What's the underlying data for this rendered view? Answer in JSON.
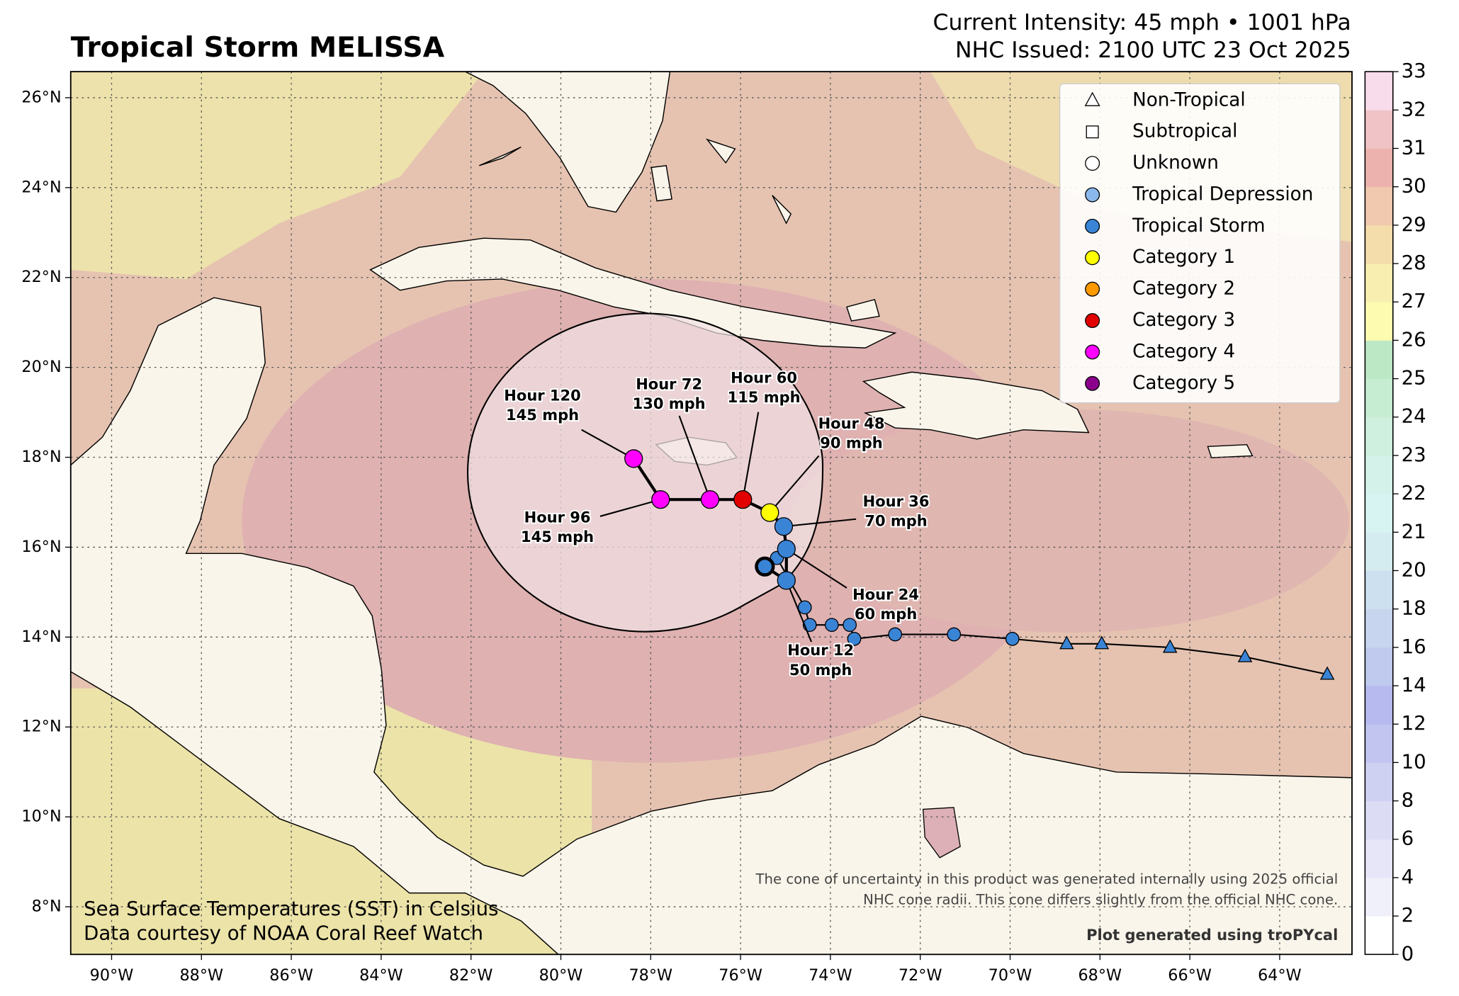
{
  "title": "Tropical Storm MELISSA",
  "intensity": "Current Intensity: 45 mph • 1001 hPa",
  "issued": "NHC Issued: 2100 UTC 23 Oct 2025",
  "map": {
    "xlim": [
      -90.91,
      -62.39
    ],
    "ylim": [
      6.94,
      26.58
    ],
    "xticks": [
      {
        "value": -90,
        "label": "90°W"
      },
      {
        "value": -88,
        "label": "88°W"
      },
      {
        "value": -86,
        "label": "86°W"
      },
      {
        "value": -84,
        "label": "84°W"
      },
      {
        "value": -82,
        "label": "82°W"
      },
      {
        "value": -80,
        "label": "80°W"
      },
      {
        "value": -78,
        "label": "78°W"
      },
      {
        "value": -76,
        "label": "76°W"
      },
      {
        "value": -74,
        "label": "74°W"
      },
      {
        "value": -72,
        "label": "72°W"
      },
      {
        "value": -70,
        "label": "70°W"
      },
      {
        "value": -68,
        "label": "68°W"
      },
      {
        "value": -66,
        "label": "66°W"
      },
      {
        "value": -64,
        "label": "64°W"
      }
    ],
    "yticks": [
      {
        "value": 8,
        "label": "8°N"
      },
      {
        "value": 10,
        "label": "10°N"
      },
      {
        "value": 12,
        "label": "12°N"
      },
      {
        "value": 14,
        "label": "14°N"
      },
      {
        "value": 16,
        "label": "16°N"
      },
      {
        "value": 18,
        "label": "18°N"
      },
      {
        "value": 20,
        "label": "20°N"
      },
      {
        "value": 22,
        "label": "22°N"
      },
      {
        "value": 24,
        "label": "24°N"
      },
      {
        "value": 26,
        "label": "26°N"
      }
    ],
    "grid": true
  },
  "legend": [
    {
      "label": "Non-Tropical",
      "marker": "triangle",
      "color": "#ffffff"
    },
    {
      "label": "Subtropical",
      "marker": "square",
      "color": "#ffffff"
    },
    {
      "label": "Unknown",
      "marker": "circle",
      "color": "#ffffff"
    },
    {
      "label": "Tropical Depression",
      "marker": "circle",
      "color": "#8ab8ec"
    },
    {
      "label": "Tropical Storm",
      "marker": "circle",
      "color": "#3a84d6"
    },
    {
      "label": "Category 1",
      "marker": "circle",
      "color": "#ffff00"
    },
    {
      "label": "Category 2",
      "marker": "circle",
      "color": "#ff9a00"
    },
    {
      "label": "Category 3",
      "marker": "circle",
      "color": "#e30000"
    },
    {
      "label": "Category 4",
      "marker": "circle",
      "color": "#ff00ff"
    },
    {
      "label": "Category 5",
      "marker": "circle",
      "color": "#8b008b"
    }
  ],
  "past_track": [
    {
      "lon": -62.94,
      "lat": 13.17,
      "marker": "triangle",
      "color": "#3a84d6"
    },
    {
      "lon": -64.77,
      "lat": 13.56,
      "marker": "triangle",
      "color": "#3a84d6"
    },
    {
      "lon": -66.44,
      "lat": 13.77,
      "marker": "triangle",
      "color": "#3a84d6"
    },
    {
      "lon": -67.96,
      "lat": 13.85,
      "marker": "triangle",
      "color": "#3a84d6"
    },
    {
      "lon": -68.74,
      "lat": 13.85,
      "marker": "triangle",
      "color": "#3a84d6"
    },
    {
      "lon": -69.95,
      "lat": 13.96,
      "marker": "circle",
      "color": "#3a84d6"
    },
    {
      "lon": -71.25,
      "lat": 14.06,
      "marker": "circle",
      "color": "#3a84d6"
    },
    {
      "lon": -72.56,
      "lat": 14.06,
      "marker": "circle",
      "color": "#3a84d6"
    },
    {
      "lon": -73.47,
      "lat": 13.96,
      "marker": "circle",
      "color": "#3a84d6"
    },
    {
      "lon": -73.57,
      "lat": 14.27,
      "marker": "circle",
      "color": "#3a84d6"
    },
    {
      "lon": -73.97,
      "lat": 14.27,
      "marker": "circle",
      "color": "#3a84d6"
    },
    {
      "lon": -74.46,
      "lat": 14.27,
      "marker": "circle",
      "color": "#3a84d6"
    },
    {
      "lon": -74.57,
      "lat": 14.66,
      "marker": "circle",
      "color": "#3a84d6"
    },
    {
      "lon": -75.19,
      "lat": 15.76,
      "marker": "circle",
      "color": "#3a84d6"
    },
    {
      "lon": -75.46,
      "lat": 15.57,
      "marker": "circle",
      "color": "#3a84d6"
    }
  ],
  "forecast": [
    {
      "lon": -74.98,
      "lat": 15.26,
      "color": "#3a84d6",
      "hour": "Hour 12",
      "wind": "50 mph"
    },
    {
      "lon": -74.98,
      "lat": 15.96,
      "color": "#3a84d6",
      "hour": "Hour 24",
      "wind": "60 mph"
    },
    {
      "lon": -75.04,
      "lat": 16.46,
      "color": "#3a84d6",
      "hour": "Hour 36",
      "wind": "70 mph"
    },
    {
      "lon": -75.35,
      "lat": 16.77,
      "color": "#ffff00",
      "hour": "Hour 48",
      "wind": "90 mph"
    },
    {
      "lon": -75.95,
      "lat": 17.06,
      "color": "#e30000",
      "hour": "Hour 60",
      "wind": "115 mph"
    },
    {
      "lon": -76.68,
      "lat": 17.06,
      "color": "#ff00ff",
      "hour": "Hour 72",
      "wind": "130 mph"
    },
    {
      "lon": -77.78,
      "lat": 17.06,
      "color": "#ff00ff",
      "hour": "Hour 96",
      "wind": "145 mph"
    },
    {
      "lon": -78.38,
      "lat": 17.97,
      "color": "#ff00ff",
      "hour": "Hour 120",
      "wind": "145 mph"
    }
  ],
  "colorbar": {
    "levels": [
      0,
      2,
      4,
      6,
      8,
      10,
      12,
      14,
      16,
      18,
      20,
      21,
      22,
      23,
      24,
      25,
      26,
      27,
      28,
      29,
      30,
      31,
      32,
      33
    ],
    "colors": [
      "#ffffff",
      "#f0f0fa",
      "#e6e6f8",
      "#dcdcf5",
      "#cfd1f2",
      "#c2c5f0",
      "#b6baee",
      "#bfcaee",
      "#c7d5ef",
      "#cde0ef",
      "#d4ecef",
      "#d8f4f2",
      "#d5f2ea",
      "#cfefdf",
      "#c6ecd2",
      "#bce8c6",
      "#fdfbb0",
      "#f8eeb0",
      "#f5dcab",
      "#f1c9ae",
      "#ecb3ae",
      "#f0c3c6",
      "#f8dcec"
    ]
  },
  "notes": {
    "sst_line1": "Sea Surface Temperatures (SST) in Celsius",
    "sst_line2": "Data courtesy of NOAA Coral Reef Watch",
    "cone_line1": "The cone of uncertainty in this product was generated internally using 2025 official",
    "cone_line2": "NHC cone radii. This cone differs slightly from the official NHC cone.",
    "credit": "Plot generated using troPYcal"
  }
}
